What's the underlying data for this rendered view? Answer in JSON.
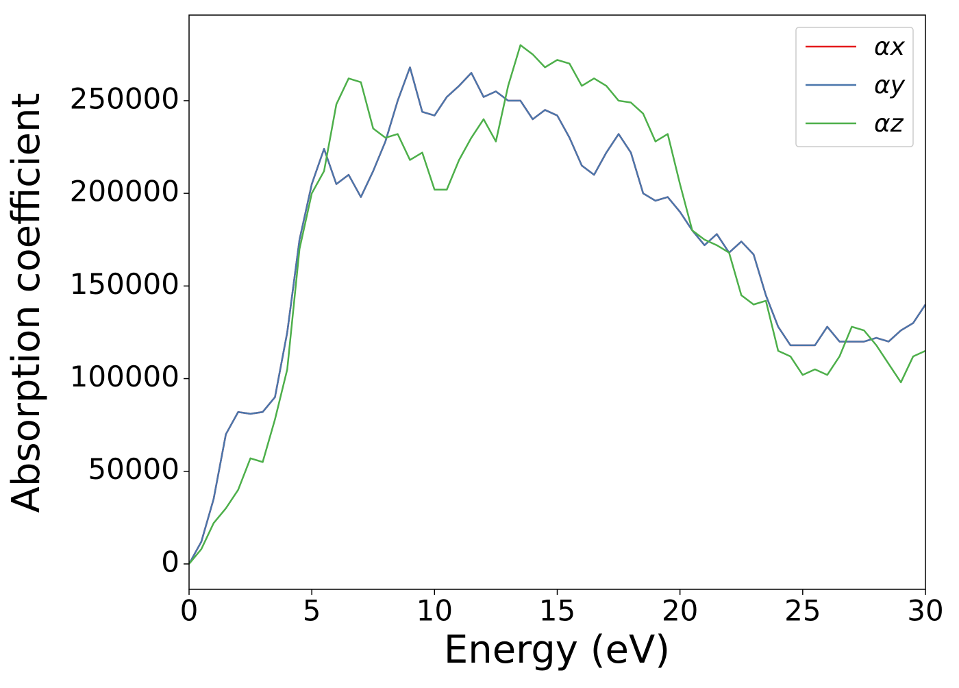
{
  "chart_data": {
    "type": "line",
    "xlabel": "Energy (eV)",
    "ylabel": "Absorption coefficient",
    "x": [
      0,
      0.5,
      1,
      1.5,
      2,
      2.5,
      3,
      3.5,
      4,
      4.5,
      5,
      5.5,
      6,
      6.5,
      7,
      7.5,
      8,
      8.5,
      9,
      9.5,
      10,
      10.5,
      11,
      11.5,
      12,
      12.5,
      13,
      13.5,
      14,
      14.5,
      15,
      15.5,
      16,
      16.5,
      17,
      17.5,
      18,
      18.5,
      19,
      19.5,
      20,
      20.5,
      21,
      21.5,
      22,
      22.5,
      23,
      23.5,
      24,
      24.5,
      25,
      25.5,
      26,
      26.5,
      27,
      27.5,
      28,
      28.5,
      29,
      29.5,
      30
    ],
    "series": [
      {
        "name": "αx",
        "color": "#e41a1c",
        "values": [
          0,
          12000,
          35000,
          70000,
          82000,
          81000,
          82000,
          90000,
          125000,
          175000,
          205000,
          224000,
          205000,
          210000,
          198000,
          212000,
          228000,
          250000,
          268000,
          244000,
          242000,
          252000,
          258000,
          265000,
          252000,
          255000,
          250000,
          250000,
          240000,
          245000,
          242000,
          230000,
          215000,
          210000,
          222000,
          232000,
          222000,
          200000,
          196000,
          198000,
          190000,
          180000,
          172000,
          178000,
          168000,
          174000,
          167000,
          145000,
          128000,
          118000,
          118000,
          118000,
          128000,
          120000,
          120000,
          120000,
          122000,
          120000,
          126000,
          130000,
          140000
        ]
      },
      {
        "name": "αy",
        "color": "#4a76ab",
        "values": [
          0,
          12000,
          35000,
          70000,
          82000,
          81000,
          82000,
          90000,
          125000,
          175000,
          205000,
          224000,
          205000,
          210000,
          198000,
          212000,
          228000,
          250000,
          268000,
          244000,
          242000,
          252000,
          258000,
          265000,
          252000,
          255000,
          250000,
          250000,
          240000,
          245000,
          242000,
          230000,
          215000,
          210000,
          222000,
          232000,
          222000,
          200000,
          196000,
          198000,
          190000,
          180000,
          172000,
          178000,
          168000,
          174000,
          167000,
          145000,
          128000,
          118000,
          118000,
          118000,
          128000,
          120000,
          120000,
          120000,
          122000,
          120000,
          126000,
          130000,
          140000
        ]
      },
      {
        "name": "αz",
        "color": "#4daf4a",
        "values": [
          0,
          8000,
          22000,
          30000,
          40000,
          57000,
          55000,
          78000,
          105000,
          170000,
          200000,
          212000,
          248000,
          262000,
          260000,
          235000,
          230000,
          232000,
          218000,
          222000,
          202000,
          202000,
          218000,
          230000,
          240000,
          228000,
          258000,
          280000,
          275000,
          268000,
          272000,
          270000,
          258000,
          262000,
          258000,
          250000,
          249000,
          243000,
          228000,
          232000,
          205000,
          180000,
          175000,
          172000,
          168000,
          145000,
          140000,
          142000,
          115000,
          112000,
          102000,
          105000,
          102000,
          112000,
          128000,
          126000,
          118000,
          108000,
          98000,
          112000,
          115000
        ]
      }
    ],
    "xlim": [
      0,
      30
    ],
    "xticks": [
      0,
      5,
      10,
      15,
      20,
      25,
      30
    ],
    "ylim": [
      -13700,
      296200
    ],
    "yticks": [
      0,
      50000,
      100000,
      150000,
      200000,
      250000
    ],
    "legend": "upper right",
    "grid": false
  }
}
